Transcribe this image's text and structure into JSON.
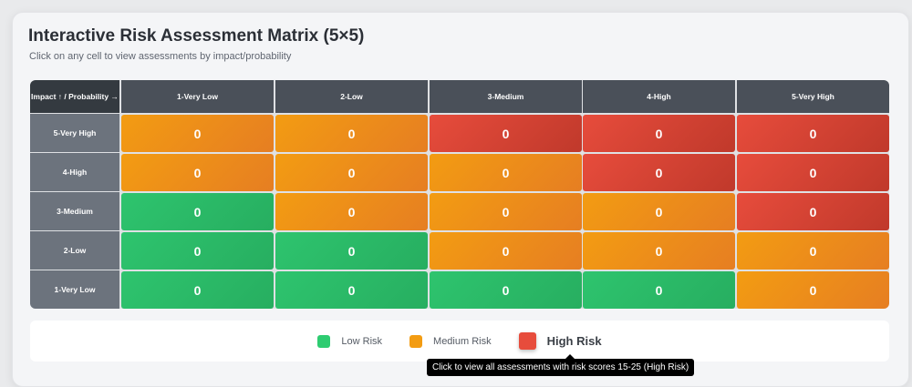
{
  "title": "Interactive Risk Assessment Matrix (5×5)",
  "subtitle": "Click on any cell to view assessments by impact/probability",
  "matrix": {
    "corner_label": "Impact ↑ / Probability →",
    "probability_labels": [
      "1-Very Low",
      "2-Low",
      "3-Medium",
      "4-High",
      "5-Very High"
    ],
    "impact_labels": [
      "5-Very High",
      "4-High",
      "3-Medium",
      "2-Low",
      "1-Very Low"
    ],
    "rows": [
      [
        {
          "count": "0",
          "level": "medium"
        },
        {
          "count": "0",
          "level": "medium"
        },
        {
          "count": "0",
          "level": "high"
        },
        {
          "count": "0",
          "level": "high"
        },
        {
          "count": "0",
          "level": "high"
        }
      ],
      [
        {
          "count": "0",
          "level": "medium"
        },
        {
          "count": "0",
          "level": "medium"
        },
        {
          "count": "0",
          "level": "medium"
        },
        {
          "count": "0",
          "level": "high"
        },
        {
          "count": "0",
          "level": "high"
        }
      ],
      [
        {
          "count": "0",
          "level": "low"
        },
        {
          "count": "0",
          "level": "medium"
        },
        {
          "count": "0",
          "level": "medium"
        },
        {
          "count": "0",
          "level": "medium"
        },
        {
          "count": "0",
          "level": "high"
        }
      ],
      [
        {
          "count": "0",
          "level": "low"
        },
        {
          "count": "0",
          "level": "low"
        },
        {
          "count": "0",
          "level": "medium"
        },
        {
          "count": "0",
          "level": "medium"
        },
        {
          "count": "0",
          "level": "medium"
        }
      ],
      [
        {
          "count": "0",
          "level": "low"
        },
        {
          "count": "0",
          "level": "low"
        },
        {
          "count": "0",
          "level": "low"
        },
        {
          "count": "0",
          "level": "low"
        },
        {
          "count": "0",
          "level": "medium"
        }
      ]
    ]
  },
  "legend": {
    "items": [
      {
        "label": "Low Risk",
        "color": "#2ecc71"
      },
      {
        "label": "Medium Risk",
        "color": "#f39c12"
      },
      {
        "label": "High Risk",
        "color": "#e74c3c"
      }
    ],
    "hovered": "High Risk"
  },
  "tooltip": "Click to view all assessments with risk scores 15-25 (High Risk)"
}
